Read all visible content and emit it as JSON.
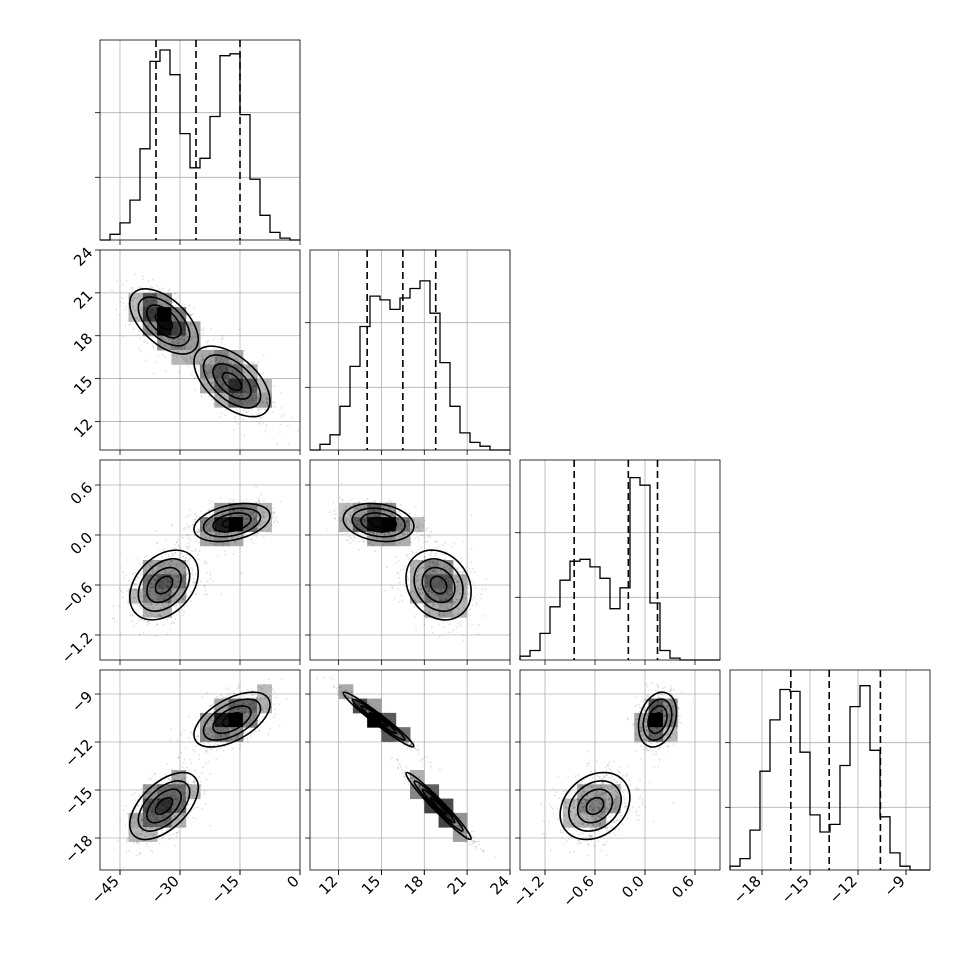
{
  "chart_data": {
    "type": "corner",
    "grid": true,
    "params": [
      {
        "range": [
          -50,
          0
        ],
        "ticks": [
          -45,
          -30,
          -15,
          0
        ],
        "tick_labels": [
          "−45",
          "−30",
          "−15",
          "0"
        ],
        "quantiles": [
          -36,
          -26,
          -15
        ],
        "hist": {
          "edges_start": -50,
          "bin_width": 2.5,
          "counts": [
            0,
            0.03,
            0.09,
            0.21,
            0.48,
            0.94,
            1.0,
            0.87,
            0.56,
            0.38,
            0.43,
            0.65,
            0.97,
            0.98,
            0.66,
            0.32,
            0.13,
            0.04,
            0.01,
            0
          ]
        }
      },
      {
        "range": [
          10,
          24
        ],
        "ticks": [
          12,
          15,
          18,
          21,
          24
        ],
        "tick_labels": [
          "12",
          "15",
          "18",
          "21",
          "24"
        ],
        "quantiles": [
          14,
          16.5,
          18.8
        ],
        "hist": {
          "edges_start": 10,
          "bin_width": 0.7,
          "counts": [
            0,
            0.03,
            0.08,
            0.23,
            0.44,
            0.65,
            0.81,
            0.79,
            0.74,
            0.8,
            0.85,
            0.89,
            0.72,
            0.46,
            0.23,
            0.09,
            0.04,
            0.02,
            0,
            0
          ]
        }
      },
      {
        "range": [
          -1.5,
          0.9
        ],
        "ticks": [
          -1.2,
          -0.6,
          0.0,
          0.6
        ],
        "tick_labels": [
          "−1.2",
          "−0.6",
          "0.0",
          "0.6"
        ],
        "quantiles": [
          -0.85,
          -0.2,
          0.15
        ],
        "hist": {
          "edges_start": -1.5,
          "bin_width": 0.12,
          "counts": [
            0.02,
            0.05,
            0.14,
            0.28,
            0.42,
            0.52,
            0.53,
            0.49,
            0.43,
            0.27,
            0.38,
            0.96,
            0.92,
            0.3,
            0.05,
            0.01,
            0,
            0,
            0,
            0
          ]
        }
      },
      {
        "range": [
          -20,
          -7.5
        ],
        "ticks": [
          -18,
          -15,
          -12,
          -9
        ],
        "tick_labels": [
          "−18",
          "−15",
          "−12",
          "−9"
        ],
        "quantiles": [
          -16.2,
          -13.8,
          -10.6
        ],
        "hist": {
          "edges_start": -20,
          "bin_width": 0.625,
          "counts": [
            0.02,
            0.06,
            0.21,
            0.52,
            0.79,
            0.95,
            0.94,
            0.62,
            0.29,
            0.2,
            0.24,
            0.55,
            0.86,
            0.97,
            0.63,
            0.28,
            0.09,
            0.02,
            0,
            0
          ]
        }
      }
    ],
    "histogram_y_ticks": [
      0.33,
      0.67
    ],
    "components": [
      {
        "means": [
          -34,
          19,
          -0.6,
          -16
        ],
        "sds": [
          4.5,
          1.2,
          0.22,
          1.1
        ],
        "weight": 0.5
      },
      {
        "means": [
          -17,
          14.8,
          0.15,
          -10.6
        ],
        "sds": [
          5.0,
          1.3,
          0.12,
          0.9
        ],
        "weight": 0.5
      }
    ],
    "contour_levels": [
      0.5,
      1.0,
      1.5,
      2.0
    ],
    "density_shading": "gray"
  }
}
